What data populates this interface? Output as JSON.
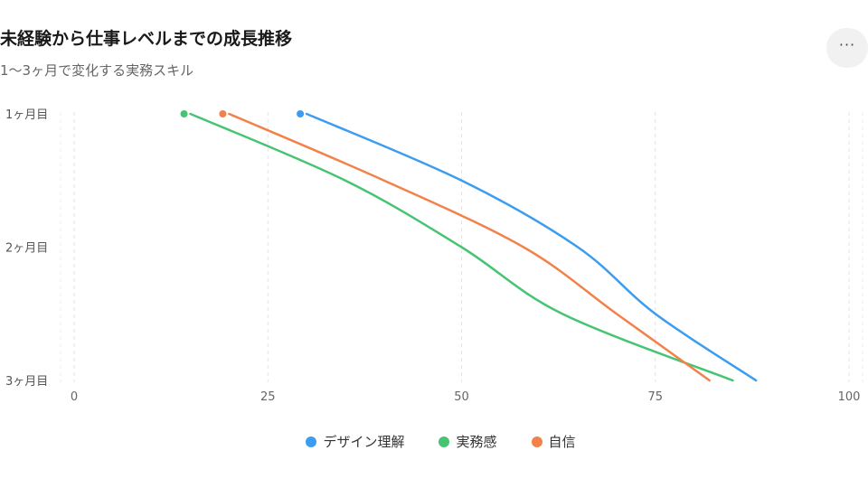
{
  "header": {
    "title": "未経験から仕事レベルまでの成長推移",
    "subtitle": "1〜3ヶ月で変化する実務スキル",
    "menu_label": "···"
  },
  "chart_data": {
    "type": "line",
    "title": "未経験から仕事レベルまでの成長推移",
    "subtitle": "1〜3ヶ月で変化する実務スキル",
    "xlabel": "",
    "ylabel": "",
    "xlim": [
      0,
      100
    ],
    "x_ticks": [
      0,
      25,
      50,
      75,
      100
    ],
    "y_categories": [
      "1ヶ月目",
      "2ヶ月目",
      "3ヶ月目"
    ],
    "grid": "vertical dashed",
    "legend_position": "bottom",
    "series": [
      {
        "name": "デザイン理解",
        "color": "#3b9cf0",
        "points": [
          [
            30,
            1.0
          ],
          [
            50,
            1.5
          ],
          [
            65,
            2.0
          ],
          [
            75,
            2.5
          ],
          [
            88,
            3.0
          ]
        ]
      },
      {
        "name": "実務感",
        "color": "#47c473",
        "points": [
          [
            15,
            1.0
          ],
          [
            35,
            1.5
          ],
          [
            50,
            2.0
          ],
          [
            63,
            2.5
          ],
          [
            85,
            3.0
          ]
        ]
      },
      {
        "name": "自信",
        "color": "#f2824a",
        "points": [
          [
            20,
            1.0
          ],
          [
            40,
            1.5
          ],
          [
            58,
            2.0
          ],
          [
            70,
            2.5
          ],
          [
            82,
            3.0
          ]
        ]
      }
    ]
  }
}
